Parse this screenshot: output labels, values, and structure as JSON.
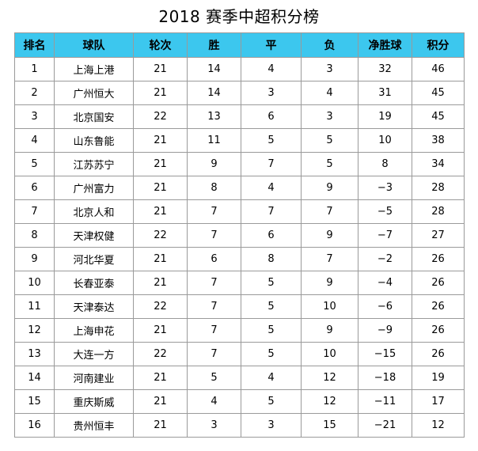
{
  "title": "2018 赛季中超积分榜",
  "table": {
    "headers": [
      "排名",
      "球队",
      "轮次",
      "胜",
      "平",
      "负",
      "净胜球",
      "积分"
    ],
    "rows": [
      [
        "1",
        "上海上港",
        "21",
        "14",
        "4",
        "3",
        "32",
        "46"
      ],
      [
        "2",
        "广州恒大",
        "21",
        "14",
        "3",
        "4",
        "31",
        "45"
      ],
      [
        "3",
        "北京国安",
        "22",
        "13",
        "6",
        "3",
        "19",
        "45"
      ],
      [
        "4",
        "山东鲁能",
        "21",
        "11",
        "5",
        "5",
        "10",
        "38"
      ],
      [
        "5",
        "江苏苏宁",
        "21",
        "9",
        "7",
        "5",
        "8",
        "34"
      ],
      [
        "6",
        "广州富力",
        "21",
        "8",
        "4",
        "9",
        "−3",
        "28"
      ],
      [
        "7",
        "北京人和",
        "21",
        "7",
        "7",
        "7",
        "−5",
        "28"
      ],
      [
        "8",
        "天津权健",
        "22",
        "7",
        "6",
        "9",
        "−7",
        "27"
      ],
      [
        "9",
        "河北华夏",
        "21",
        "6",
        "8",
        "7",
        "−2",
        "26"
      ],
      [
        "10",
        "长春亚泰",
        "21",
        "7",
        "5",
        "9",
        "−4",
        "26"
      ],
      [
        "11",
        "天津泰达",
        "22",
        "7",
        "5",
        "10",
        "−6",
        "26"
      ],
      [
        "12",
        "上海申花",
        "21",
        "7",
        "5",
        "9",
        "−9",
        "26"
      ],
      [
        "13",
        "大连一方",
        "22",
        "7",
        "5",
        "10",
        "−15",
        "26"
      ],
      [
        "14",
        "河南建业",
        "21",
        "5",
        "4",
        "12",
        "−18",
        "19"
      ],
      [
        "15",
        "重庆斯威",
        "21",
        "4",
        "5",
        "12",
        "−11",
        "17"
      ],
      [
        "16",
        "贵州恒丰",
        "21",
        "3",
        "3",
        "15",
        "−21",
        "12"
      ]
    ]
  },
  "colors": {
    "header_background": "#3cc7ee",
    "grid_line": "#9a9a9a"
  }
}
